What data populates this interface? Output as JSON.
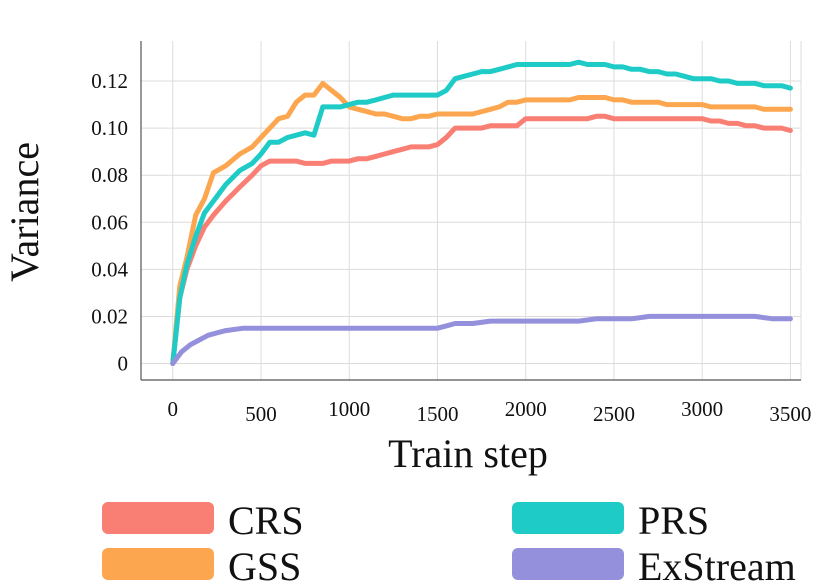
{
  "chart_data": {
    "type": "line",
    "title": "",
    "xlabel": "Train step",
    "ylabel": "Variance",
    "xlim": [
      -180,
      3560
    ],
    "ylim": [
      -0.007,
      0.137
    ],
    "grid": true,
    "x_ticks": [
      0,
      500,
      1000,
      1500,
      2000,
      2500,
      3000,
      3500
    ],
    "x_tick_labels": [
      "0",
      "500",
      "1000",
      "1500",
      "2000",
      "2500",
      "3000",
      "3500"
    ],
    "y_ticks": [
      0,
      0.02,
      0.04,
      0.06,
      0.08,
      0.1,
      0.12
    ],
    "y_tick_labels": [
      "0",
      "0.02",
      "0.04",
      "0.06",
      "0.08",
      "0.10",
      "0.12"
    ],
    "legend_position": "bottom",
    "series": [
      {
        "name": "CRS",
        "color": "#F97F74",
        "x": [
          0,
          40,
          80,
          130,
          180,
          230,
          300,
          380,
          450,
          500,
          550,
          600,
          650,
          700,
          750,
          800,
          850,
          900,
          950,
          1000,
          1050,
          1100,
          1150,
          1200,
          1250,
          1300,
          1350,
          1400,
          1450,
          1500,
          1550,
          1600,
          1650,
          1700,
          1750,
          1800,
          1850,
          1900,
          1950,
          2000,
          2050,
          2100,
          2150,
          2200,
          2250,
          2300,
          2350,
          2400,
          2450,
          2500,
          2550,
          2600,
          2650,
          2700,
          2750,
          2800,
          2850,
          2900,
          2950,
          3000,
          3050,
          3100,
          3150,
          3200,
          3250,
          3300,
          3350,
          3400,
          3450,
          3500
        ],
        "values": [
          0,
          0.028,
          0.04,
          0.05,
          0.058,
          0.063,
          0.069,
          0.075,
          0.08,
          0.084,
          0.086,
          0.086,
          0.086,
          0.086,
          0.085,
          0.085,
          0.085,
          0.086,
          0.086,
          0.086,
          0.087,
          0.087,
          0.088,
          0.089,
          0.09,
          0.091,
          0.092,
          0.092,
          0.092,
          0.093,
          0.096,
          0.1,
          0.1,
          0.1,
          0.1,
          0.101,
          0.101,
          0.101,
          0.101,
          0.104,
          0.104,
          0.104,
          0.104,
          0.104,
          0.104,
          0.104,
          0.104,
          0.105,
          0.105,
          0.104,
          0.104,
          0.104,
          0.104,
          0.104,
          0.104,
          0.104,
          0.104,
          0.104,
          0.104,
          0.104,
          0.103,
          0.103,
          0.102,
          0.102,
          0.101,
          0.101,
          0.1,
          0.1,
          0.1,
          0.099
        ]
      },
      {
        "name": "GSS",
        "color": "#FCA74F",
        "x": [
          0,
          40,
          80,
          130,
          180,
          230,
          300,
          380,
          450,
          500,
          550,
          600,
          650,
          700,
          750,
          800,
          850,
          900,
          950,
          1000,
          1050,
          1100,
          1150,
          1200,
          1250,
          1300,
          1350,
          1400,
          1450,
          1500,
          1550,
          1600,
          1650,
          1700,
          1750,
          1800,
          1850,
          1900,
          1950,
          2000,
          2050,
          2100,
          2150,
          2200,
          2250,
          2300,
          2350,
          2400,
          2450,
          2500,
          2550,
          2600,
          2650,
          2700,
          2750,
          2800,
          2850,
          2900,
          2950,
          3000,
          3050,
          3100,
          3150,
          3200,
          3250,
          3300,
          3350,
          3400,
          3450,
          3500
        ],
        "values": [
          0,
          0.033,
          0.045,
          0.063,
          0.07,
          0.081,
          0.084,
          0.089,
          0.092,
          0.096,
          0.1,
          0.104,
          0.105,
          0.111,
          0.114,
          0.114,
          0.119,
          0.116,
          0.113,
          0.109,
          0.108,
          0.107,
          0.106,
          0.106,
          0.105,
          0.104,
          0.104,
          0.105,
          0.105,
          0.106,
          0.106,
          0.106,
          0.106,
          0.106,
          0.107,
          0.108,
          0.109,
          0.111,
          0.111,
          0.112,
          0.112,
          0.112,
          0.112,
          0.112,
          0.112,
          0.113,
          0.113,
          0.113,
          0.113,
          0.112,
          0.112,
          0.111,
          0.111,
          0.111,
          0.111,
          0.11,
          0.11,
          0.11,
          0.11,
          0.11,
          0.109,
          0.109,
          0.109,
          0.109,
          0.109,
          0.109,
          0.108,
          0.108,
          0.108,
          0.108
        ]
      },
      {
        "name": "PRS",
        "color": "#1ECBC6",
        "x": [
          0,
          40,
          80,
          130,
          180,
          230,
          300,
          380,
          450,
          500,
          550,
          600,
          650,
          700,
          750,
          800,
          850,
          900,
          950,
          1000,
          1050,
          1100,
          1150,
          1200,
          1250,
          1300,
          1350,
          1400,
          1450,
          1500,
          1550,
          1600,
          1650,
          1700,
          1750,
          1800,
          1850,
          1900,
          1950,
          2000,
          2050,
          2100,
          2150,
          2200,
          2250,
          2300,
          2350,
          2400,
          2450,
          2500,
          2550,
          2600,
          2650,
          2700,
          2750,
          2800,
          2850,
          2900,
          2950,
          3000,
          3050,
          3100,
          3150,
          3200,
          3250,
          3300,
          3350,
          3400,
          3450,
          3500
        ],
        "values": [
          0,
          0.028,
          0.042,
          0.054,
          0.064,
          0.069,
          0.076,
          0.082,
          0.085,
          0.089,
          0.094,
          0.094,
          0.096,
          0.097,
          0.098,
          0.097,
          0.109,
          0.109,
          0.109,
          0.11,
          0.111,
          0.111,
          0.112,
          0.113,
          0.114,
          0.114,
          0.114,
          0.114,
          0.114,
          0.114,
          0.116,
          0.121,
          0.122,
          0.123,
          0.124,
          0.124,
          0.125,
          0.126,
          0.127,
          0.127,
          0.127,
          0.127,
          0.127,
          0.127,
          0.127,
          0.128,
          0.127,
          0.127,
          0.127,
          0.126,
          0.126,
          0.125,
          0.125,
          0.124,
          0.124,
          0.123,
          0.123,
          0.122,
          0.121,
          0.121,
          0.121,
          0.12,
          0.12,
          0.119,
          0.119,
          0.119,
          0.118,
          0.118,
          0.118,
          0.117
        ]
      },
      {
        "name": "ExStream",
        "color": "#9590DC",
        "x": [
          0,
          50,
          100,
          150,
          200,
          250,
          300,
          400,
          500,
          600,
          700,
          800,
          900,
          1000,
          1100,
          1200,
          1300,
          1400,
          1500,
          1550,
          1600,
          1700,
          1800,
          1900,
          2000,
          2100,
          2200,
          2300,
          2400,
          2500,
          2600,
          2700,
          2800,
          2900,
          3000,
          3100,
          3200,
          3300,
          3400,
          3500
        ],
        "values": [
          0,
          0.005,
          0.008,
          0.01,
          0.012,
          0.013,
          0.014,
          0.015,
          0.015,
          0.015,
          0.015,
          0.015,
          0.015,
          0.015,
          0.015,
          0.015,
          0.015,
          0.015,
          0.015,
          0.016,
          0.017,
          0.017,
          0.018,
          0.018,
          0.018,
          0.018,
          0.018,
          0.018,
          0.019,
          0.019,
          0.019,
          0.02,
          0.02,
          0.02,
          0.02,
          0.02,
          0.02,
          0.02,
          0.019,
          0.019
        ]
      }
    ]
  }
}
